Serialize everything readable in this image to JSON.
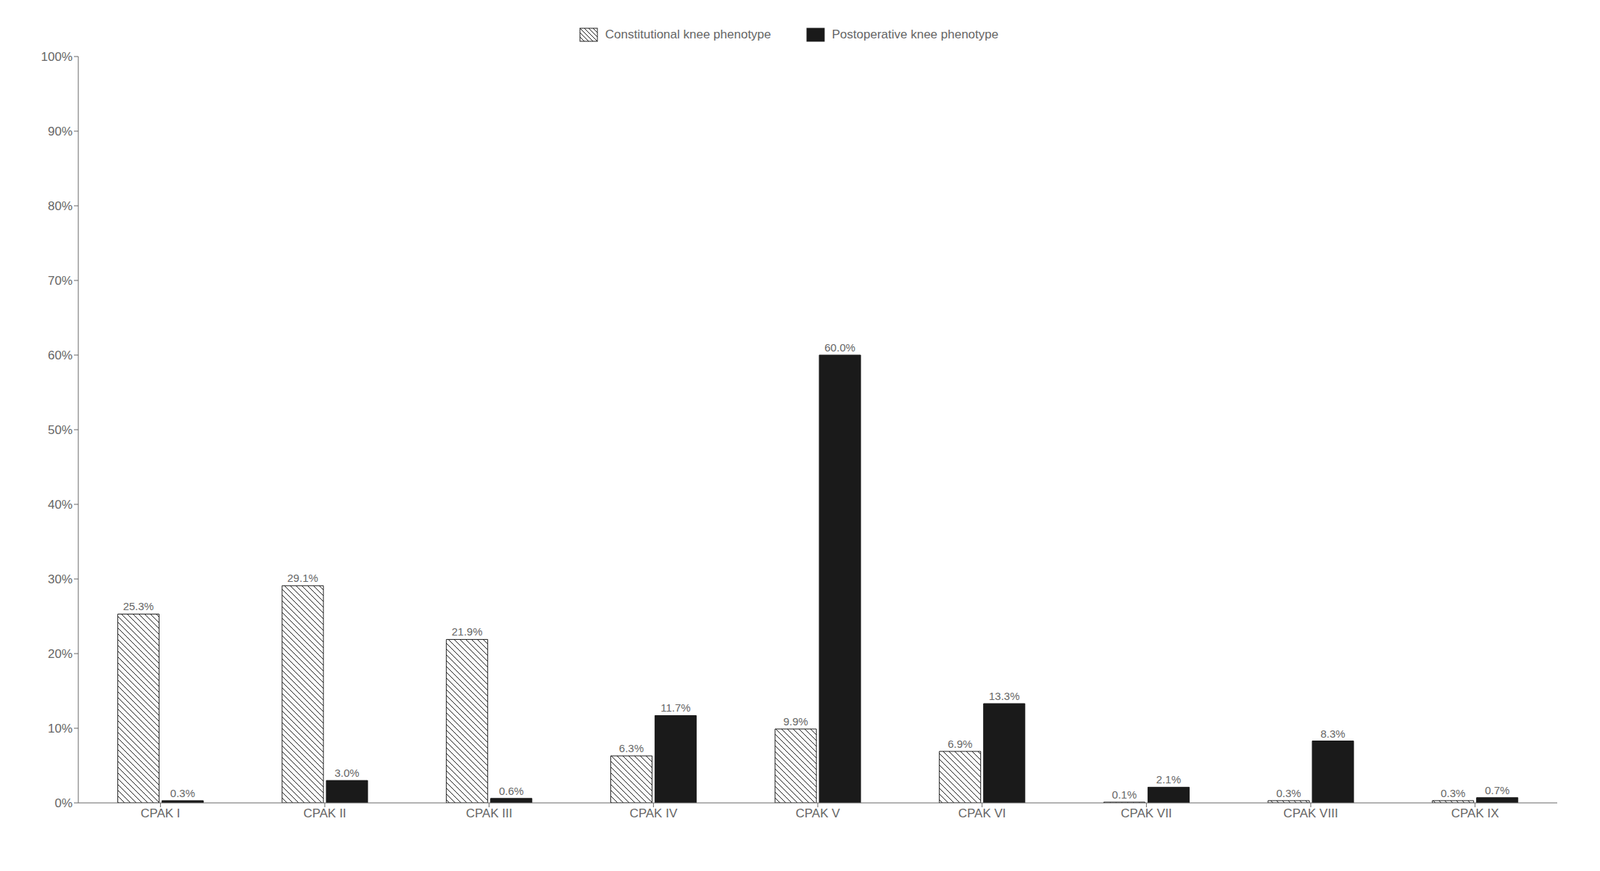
{
  "chart_data": {
    "type": "bar",
    "categories": [
      "CPAK I",
      "CPAK II",
      "CPAK III",
      "CPAK IV",
      "CPAK V",
      "CPAK VI",
      "CPAK VII",
      "CPAK VIII",
      "CPAK IX"
    ],
    "series": [
      {
        "name": "Constitutional knee phenotype",
        "color": "#ffffff",
        "values": [
          25.3,
          29.1,
          21.9,
          6.3,
          9.9,
          6.9,
          0.1,
          0.3,
          0.3
        ],
        "value_labels": [
          "25.3%",
          "29.1%",
          "21.9%",
          "6.3%",
          "9.9%",
          "6.9%",
          "0.1%",
          "0.3%",
          "0.3%"
        ]
      },
      {
        "name": "Postoperative knee phenotype",
        "color": "#1a1a1a",
        "values": [
          0.3,
          3.0,
          0.6,
          11.7,
          60.0,
          13.3,
          2.1,
          8.3,
          0.7
        ],
        "value_labels": [
          "0.3%",
          "3.0%",
          "0.6%",
          "11.7%",
          "60.0%",
          "13.3%",
          "2.1%",
          "8.3%",
          "0.7%"
        ]
      }
    ],
    "ylim": [
      0,
      100
    ],
    "yticks": [
      {
        "value": 0,
        "label": "0%"
      },
      {
        "value": 10,
        "label": "10%"
      },
      {
        "value": 20,
        "label": "20%"
      },
      {
        "value": 30,
        "label": "30%"
      },
      {
        "value": 40,
        "label": "40%"
      },
      {
        "value": 50,
        "label": "50%"
      },
      {
        "value": 60,
        "label": "60%"
      },
      {
        "value": 70,
        "label": "70%"
      },
      {
        "value": 80,
        "label": "80%"
      },
      {
        "value": 90,
        "label": "90%"
      },
      {
        "value": 100,
        "label": "100%"
      }
    ],
    "grid": false,
    "legend": "top",
    "data_labels": true
  }
}
